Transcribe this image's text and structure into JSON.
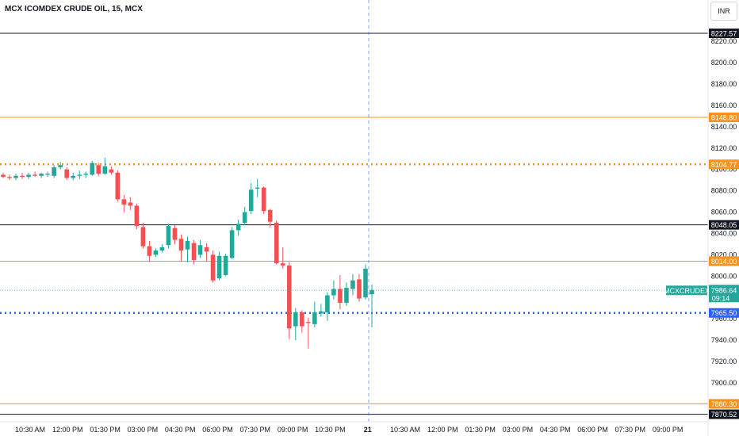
{
  "header": {
    "title": "MCX ICOMDEX CRUDE OIL, 15, MCX"
  },
  "currency": "INR",
  "colors": {
    "up": "#26a69a",
    "down": "#ef5350",
    "orange": "#f7931a",
    "black": "#131722",
    "blue": "#2962ff",
    "axis_text": "#131722"
  },
  "chart_data": {
    "type": "candlestick",
    "ylim": [
      7865,
      8238
    ],
    "y_ticks": [
      7880,
      7900,
      7920,
      7940,
      7960,
      7980,
      8000,
      8020,
      8040,
      8060,
      8080,
      8100,
      8120,
      8140,
      8160,
      8180,
      8200,
      8220
    ],
    "x_tick_labels": [
      "10:30 AM",
      "12:00 PM",
      "01:30 PM",
      "03:00 PM",
      "04:30 PM",
      "06:00 PM",
      "07:30 PM",
      "09:00 PM",
      "10:30 PM",
      "21",
      "10:30 AM",
      "12:00 PM",
      "01:30 PM",
      "03:00 PM",
      "04:30 PM",
      "06:00 PM",
      "07:30 PM",
      "09:00 PM"
    ],
    "horizontal_levels": [
      {
        "value": 8227.57,
        "label": "8227.57",
        "style": "solid",
        "color": "#131722"
      },
      {
        "value": 8148.8,
        "label": "8148.80",
        "style": "solid",
        "color": "#f7931a"
      },
      {
        "value": 8104.77,
        "label": "8104.77",
        "style": "dotted",
        "color": "#f7931a"
      },
      {
        "value": 8048.05,
        "label": "8048.05",
        "style": "solid",
        "color": "#131722"
      },
      {
        "value": 8014.0,
        "label": "8014.00",
        "style": "solid",
        "color": "#f7931a"
      },
      {
        "value": 7965.5,
        "label": "7965.50",
        "style": "dotted",
        "color": "#2962ff"
      },
      {
        "value": 7880.3,
        "label": "7880.30",
        "style": "solid",
        "color": "#f7931a"
      },
      {
        "value": 7870.52,
        "label": "7870.52",
        "style": "solid",
        "color": "#131722"
      }
    ],
    "current_price": {
      "symbol": "MCXCRUDEX",
      "price": "7986.64",
      "countdown": "09:14",
      "value": 7986.64
    },
    "candles": [
      {
        "o": 8095,
        "h": 8097,
        "l": 8092,
        "c": 8093
      },
      {
        "o": 8093,
        "h": 8095,
        "l": 8090,
        "c": 8092
      },
      {
        "o": 8092,
        "h": 8096,
        "l": 8090,
        "c": 8094
      },
      {
        "o": 8094,
        "h": 8097,
        "l": 8091,
        "c": 8093
      },
      {
        "o": 8093,
        "h": 8097,
        "l": 8091,
        "c": 8095
      },
      {
        "o": 8095,
        "h": 8098,
        "l": 8093,
        "c": 8094
      },
      {
        "o": 8094,
        "h": 8097,
        "l": 8092,
        "c": 8096
      },
      {
        "o": 8095,
        "h": 8098,
        "l": 8093,
        "c": 8096
      },
      {
        "o": 8094,
        "h": 8104,
        "l": 8092,
        "c": 8102
      },
      {
        "o": 8102,
        "h": 8107,
        "l": 8100,
        "c": 8104
      },
      {
        "o": 8100,
        "h": 8102,
        "l": 8090,
        "c": 8092
      },
      {
        "o": 8092,
        "h": 8097,
        "l": 8090,
        "c": 8094
      },
      {
        "o": 8094,
        "h": 8099,
        "l": 8091,
        "c": 8095
      },
      {
        "o": 8095,
        "h": 8098,
        "l": 8092,
        "c": 8096
      },
      {
        "o": 8095,
        "h": 8108,
        "l": 8094,
        "c": 8106
      },
      {
        "o": 8104,
        "h": 8106,
        "l": 8094,
        "c": 8096
      },
      {
        "o": 8096,
        "h": 8111,
        "l": 8095,
        "c": 8103
      },
      {
        "o": 8100,
        "h": 8103,
        "l": 8095,
        "c": 8097
      },
      {
        "o": 8097,
        "h": 8099,
        "l": 8070,
        "c": 8072
      },
      {
        "o": 8072,
        "h": 8076,
        "l": 8060,
        "c": 8067
      },
      {
        "o": 8069,
        "h": 8074,
        "l": 8062,
        "c": 8066
      },
      {
        "o": 8066,
        "h": 8068,
        "l": 8044,
        "c": 8047
      },
      {
        "o": 8046,
        "h": 8050,
        "l": 8026,
        "c": 8028
      },
      {
        "o": 8028,
        "h": 8033,
        "l": 8014,
        "c": 8019
      },
      {
        "o": 8020,
        "h": 8026,
        "l": 8018,
        "c": 8024
      },
      {
        "o": 8024,
        "h": 8030,
        "l": 8022,
        "c": 8027
      },
      {
        "o": 8029,
        "h": 8049,
        "l": 8026,
        "c": 8047
      },
      {
        "o": 8045,
        "h": 8048,
        "l": 8030,
        "c": 8034
      },
      {
        "o": 8035,
        "h": 8039,
        "l": 8014,
        "c": 8024
      },
      {
        "o": 8025,
        "h": 8037,
        "l": 8013,
        "c": 8033
      },
      {
        "o": 8031,
        "h": 8034,
        "l": 8011,
        "c": 8015
      },
      {
        "o": 8020,
        "h": 8034,
        "l": 8017,
        "c": 8029
      },
      {
        "o": 8027,
        "h": 8031,
        "l": 8014,
        "c": 8023
      },
      {
        "o": 8020,
        "h": 8024,
        "l": 7994,
        "c": 7996
      },
      {
        "o": 7998,
        "h": 8023,
        "l": 7996,
        "c": 8019
      },
      {
        "o": 8001,
        "h": 8021,
        "l": 8000,
        "c": 8019
      },
      {
        "o": 8017,
        "h": 8046,
        "l": 8016,
        "c": 8043
      },
      {
        "o": 8043,
        "h": 8053,
        "l": 8038,
        "c": 8049
      },
      {
        "o": 8050,
        "h": 8065,
        "l": 8048,
        "c": 8060
      },
      {
        "o": 8061,
        "h": 8087,
        "l": 8058,
        "c": 8081
      },
      {
        "o": 8082,
        "h": 8091,
        "l": 8074,
        "c": 8083
      },
      {
        "o": 8083,
        "h": 8084,
        "l": 8058,
        "c": 8061
      },
      {
        "o": 8062,
        "h": 8063,
        "l": 8046,
        "c": 8051
      },
      {
        "o": 8050,
        "h": 8052,
        "l": 8011,
        "c": 8012
      },
      {
        "o": 8012,
        "h": 8027,
        "l": 8007,
        "c": 8010
      },
      {
        "o": 8010,
        "h": 8013,
        "l": 7941,
        "c": 7951
      },
      {
        "o": 7953,
        "h": 7970,
        "l": 7940,
        "c": 7966
      },
      {
        "o": 7966,
        "h": 7968,
        "l": 7947,
        "c": 7953
      },
      {
        "o": 7957,
        "h": 7961,
        "l": 7932,
        "c": 7956
      },
      {
        "o": 7955,
        "h": 7976,
        "l": 7952,
        "c": 7966
      },
      {
        "o": 7965,
        "h": 7974,
        "l": 7962,
        "c": 7967
      },
      {
        "o": 7966,
        "h": 7985,
        "l": 7958,
        "c": 7982
      },
      {
        "o": 7982,
        "h": 7996,
        "l": 7978,
        "c": 7988
      },
      {
        "o": 7988,
        "h": 8001,
        "l": 7969,
        "c": 7975
      },
      {
        "o": 7975,
        "h": 7994,
        "l": 7972,
        "c": 7989
      },
      {
        "o": 7988,
        "h": 8002,
        "l": 7982,
        "c": 7996
      },
      {
        "o": 7997,
        "h": 8002,
        "l": 7976,
        "c": 7979
      },
      {
        "o": 7980,
        "h": 8011,
        "l": 7978,
        "c": 8007
      },
      {
        "o": 7983,
        "h": 7992,
        "l": 7952,
        "c": 7987
      }
    ]
  }
}
